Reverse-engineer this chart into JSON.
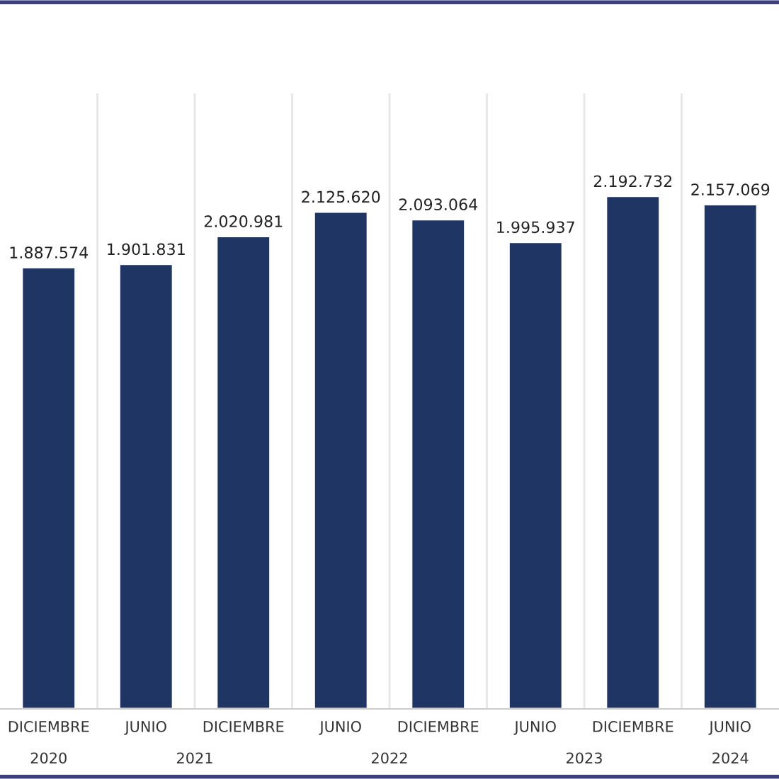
{
  "chart_data": {
    "type": "bar",
    "categories": [
      "DICIEMBRE",
      "JUNIO",
      "DICIEMBRE",
      "JUNIO",
      "DICIEMBRE",
      "JUNIO",
      "DICIEMBRE",
      "JUNIO"
    ],
    "values": [
      1887574,
      1901831,
      2020981,
      2125620,
      2093064,
      1995937,
      2192732,
      2157069
    ],
    "value_labels": [
      "1.887.574",
      "1.901.831",
      "2.020.981",
      "2.125.620",
      "2.093.064",
      "1.995.937",
      "2.192.732",
      "2.157.069"
    ],
    "color": "#1f3564",
    "annotations": [
      "2020",
      "2021",
      "2022",
      "2023",
      "2024"
    ],
    "grid": "x"
  }
}
